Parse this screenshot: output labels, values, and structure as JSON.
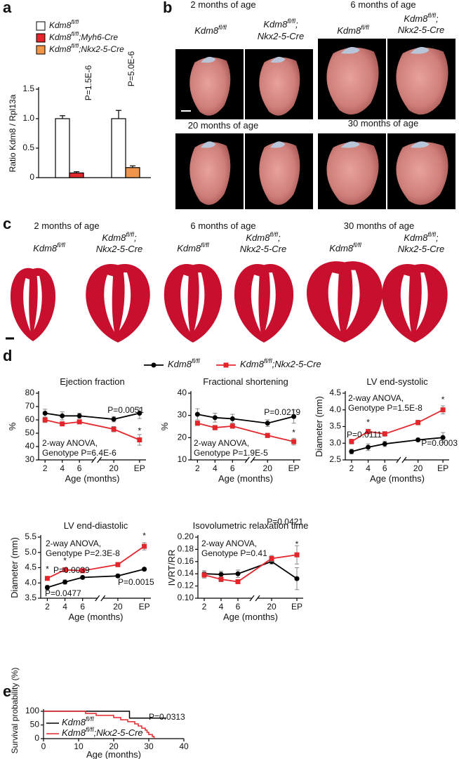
{
  "panel_labels": [
    "a",
    "b",
    "c",
    "d",
    "e"
  ],
  "panel_b": {
    "captions": [
      "2 months of age",
      "6 months of age",
      "20 months of age",
      "30 months of age"
    ],
    "genotype_control": "Kdm8fl/fl",
    "genotype_ko": [
      "Kdm8fl/fl;",
      "Nkx2-5-Cre"
    ]
  },
  "panel_c": {
    "captions": [
      "2 months of age",
      "6 months of age",
      "30 months of age"
    ],
    "genotype_control": "Kdm8fl/fl",
    "genotype_ko": [
      "Kdm8fl/fl;",
      "Nkx2-5-Cre"
    ]
  },
  "chart_data": [
    {
      "type": "bar",
      "ylabel": "Ratio Kdm8 / Rpl13a",
      "categories": [
        null,
        null
      ],
      "series": [
        {
          "name": "Kdm8fl/fl",
          "color": "#ffffff",
          "values": [
            1.0,
            1.0
          ],
          "errors": [
            0.05,
            0.14
          ]
        },
        {
          "name": "Kdm8fl/fl;Myh6-Cre",
          "color": "#e3262b",
          "values": [
            0.08,
            null
          ],
          "errors": [
            0.02,
            null
          ]
        },
        {
          "name": "Kdm8fl/fl;Nkx2-5-Cre",
          "color": "#f0954a",
          "values": [
            null,
            0.17
          ],
          "errors": [
            null,
            0.03
          ]
        }
      ],
      "ylim": [
        0,
        1.5
      ],
      "yticks": [
        0,
        0.5,
        {
          "value": 1,
          "label": "1.0"
        },
        1.5
      ],
      "annotations": [
        "P=1.5E-6",
        "P=5.0E-6"
      ]
    },
    {
      "type": "line",
      "title": "Ejection fraction",
      "ylabel": "%",
      "xlabel": "Age (months)",
      "categories": [
        "2",
        "4",
        "6",
        "20",
        "EP"
      ],
      "series": [
        {
          "name": "Kdm8fl/fl",
          "color": "#000000",
          "values": [
            65,
            63,
            63,
            60.5,
            65
          ],
          "errors": [
            3,
            3,
            2,
            2,
            4
          ]
        },
        {
          "name": "Kdm8fl/fl;Nkx2-5-Cre",
          "color": "#e3262b",
          "values": [
            60,
            57,
            58.5,
            53,
            45
          ],
          "errors": [
            2,
            1.5,
            1,
            2,
            4
          ]
        }
      ],
      "ylim": [
        30,
        80
      ],
      "yticks": [
        30,
        40,
        50,
        60,
        70,
        80
      ],
      "annotations": [
        "P=0.0051",
        "2-way ANOVA,",
        "Genotype P=6.4E-6",
        "*"
      ]
    },
    {
      "type": "line",
      "title": "Fractional shortening",
      "ylabel": "%",
      "xlabel": "Age (months)",
      "categories": [
        "2",
        "4",
        "6",
        "20",
        "EP"
      ],
      "series": [
        {
          "name": "Kdm8fl/fl",
          "color": "#000000",
          "values": [
            30.5,
            29,
            28.5,
            26.5,
            29.5
          ],
          "errors": [
            2.5,
            2,
            2,
            1.5,
            3
          ]
        },
        {
          "name": "Kdm8fl/fl;Nkx2-5-Cre",
          "color": "#e3262b",
          "values": [
            26.5,
            24.5,
            25.2,
            21,
            18.2
          ],
          "errors": [
            1,
            1,
            1,
            1,
            1.5
          ]
        }
      ],
      "ylim": [
        10,
        40
      ],
      "yticks": [
        10,
        20,
        30,
        40
      ],
      "annotations": [
        "P=0.0219",
        "2-way ANOVA,",
        "Genotype P=1.9E-5",
        "*"
      ]
    },
    {
      "type": "line",
      "title": "LV end-systolic",
      "ylabel": "Diameter (mm)",
      "xlabel": "Age (months)",
      "categories": [
        "2",
        "4",
        "6",
        "20",
        "EP"
      ],
      "series": [
        {
          "name": "Kdm8fl/fl",
          "color": "#000000",
          "values": [
            2.75,
            2.88,
            2.98,
            3.1,
            3.17
          ],
          "errors": [
            0.07,
            0.1,
            0.08,
            0.05,
            0.15
          ]
        },
        {
          "name": "Kdm8fl/fl;Nkx2-5-Cre",
          "color": "#e3262b",
          "values": [
            3.05,
            3.35,
            3.28,
            3.62,
            4.0
          ],
          "errors": [
            0.07,
            0.07,
            0.07,
            0.07,
            0.12
          ]
        }
      ],
      "ylim": [
        2.5,
        4.5
      ],
      "yticks": [
        2.5,
        {
          "value": 3,
          "label": "3.0"
        },
        3.5,
        {
          "value": 4,
          "label": "4.0"
        },
        4.5
      ],
      "annotations": [
        "2-way ANOVA,",
        "Genotype P=1.5E-8",
        "P=0.0111",
        "P=0.0003",
        "*",
        "*"
      ]
    },
    {
      "type": "line",
      "title": "LV end-diastolic",
      "ylabel": "Diameter (mm)",
      "xlabel": "Age (months)",
      "categories": [
        "2",
        "4",
        "6",
        "20",
        "EP"
      ],
      "series": [
        {
          "name": "Kdm8fl/fl",
          "color": "#000000",
          "values": [
            3.85,
            4.03,
            4.18,
            4.23,
            4.45
          ],
          "errors": [
            0.07,
            0.07,
            0.05,
            0.05,
            0.05
          ]
        },
        {
          "name": "Kdm8fl/fl;Nkx2-5-Cre",
          "color": "#e3262b",
          "values": [
            4.15,
            4.43,
            4.4,
            4.6,
            5.2
          ],
          "errors": [
            0.05,
            0.05,
            0.05,
            0.07,
            0.12
          ]
        }
      ],
      "ylim": [
        3.5,
        5.5
      ],
      "yticks": [
        3.5,
        {
          "value": 4,
          "label": "4.0"
        },
        4.5,
        {
          "value": 5,
          "label": "5.0"
        },
        5.5
      ],
      "annotations": [
        "2-way ANOVA,",
        "Genotype P=2.3E-8",
        "P=0.0039",
        "P=0.0477",
        "P=0.0015",
        "*",
        "*",
        "*"
      ]
    },
    {
      "type": "line",
      "title": "Isovolumetric relaxation time",
      "ylabel": "IVRT/RR",
      "xlabel": "Age (months)",
      "categories": [
        "2",
        "4",
        "6",
        "20",
        "EP"
      ],
      "series": [
        {
          "name": "Kdm8fl/fl",
          "color": "#000000",
          "values": [
            0.14,
            0.139,
            0.14,
            0.16,
            0.132
          ],
          "errors": [
            0.005,
            0.005,
            0.006,
            0.004,
            0.018
          ]
        },
        {
          "name": "Kdm8fl/fl;Nkx2-5-Cre",
          "color": "#e3262b",
          "values": [
            0.138,
            0.131,
            0.127,
            0.165,
            0.171
          ],
          "errors": [
            0.005,
            0.004,
            0.003,
            0.005,
            0.015
          ]
        }
      ],
      "ylim": [
        0.1,
        0.2
      ],
      "yticks": [
        {
          "value": 0.1,
          "label": "0.10"
        },
        0.12,
        0.14,
        0.16,
        0.18,
        {
          "value": 0.2,
          "label": "0.20"
        }
      ],
      "annotations": [
        "2-way ANOVA,",
        "Genotype P=0.41",
        "P=0.0421",
        "*"
      ]
    },
    {
      "type": "step",
      "ylabel": "Survival probability (%)",
      "xlabel": "Age (months)",
      "series": [
        {
          "name": "Kdm8fl/fl",
          "color": "#000000",
          "x": [
            0,
            24.5,
            24.5,
            35
          ],
          "values": [
            100,
            100,
            75,
            75
          ]
        },
        {
          "name": "Kdm8fl/fl;Nkx2-5-Cre",
          "color": "#e3262b",
          "x": [
            0,
            12,
            12,
            15,
            15,
            20,
            20,
            22,
            22,
            24,
            24,
            26,
            26,
            27,
            27,
            28,
            28,
            29,
            29,
            29.5,
            29.5,
            30,
            30,
            31,
            31,
            31.5,
            31.5
          ],
          "values": [
            100,
            100,
            92,
            92,
            85,
            85,
            77,
            77,
            69,
            69,
            62,
            62,
            54,
            54,
            46,
            46,
            38,
            38,
            31,
            31,
            23,
            23,
            15,
            15,
            8,
            8,
            0
          ]
        }
      ],
      "xlim": [
        0,
        40
      ],
      "xticks": [
        0,
        10,
        20,
        30,
        40
      ],
      "ylim": [
        0,
        100
      ],
      "yticks": [
        0,
        50,
        100
      ],
      "annotations": [
        "P=0.0313"
      ]
    }
  ]
}
